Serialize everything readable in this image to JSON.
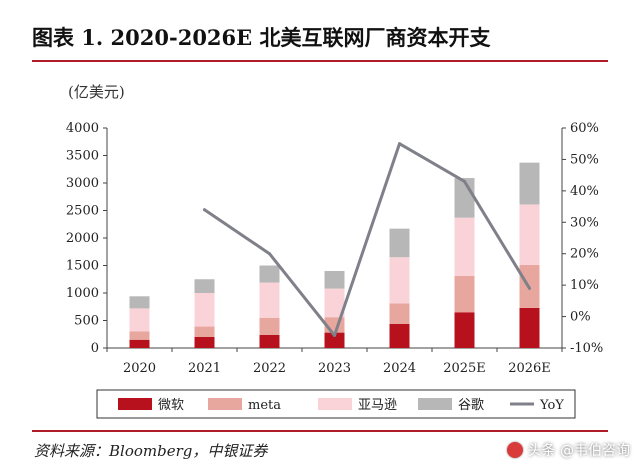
{
  "title": "图表 1. 2020-2026E 北美互联网厂商资本开支",
  "source": "资料来源：Bloomberg，中银证券",
  "watermark": "头条 @韦伯咨询",
  "chart_data": {
    "type": "bar",
    "stacked": true,
    "categories": [
      "2020",
      "2021",
      "2022",
      "2023",
      "2024",
      "2025E",
      "2026E"
    ],
    "ylabel": "(亿美元)",
    "ylim": [
      0,
      4000
    ],
    "y_ticks": [
      0,
      500,
      1000,
      1500,
      2000,
      2500,
      3000,
      3500,
      4000
    ],
    "y2lim": [
      -10,
      60
    ],
    "y2_ticks": [
      "-10%",
      "0%",
      "10%",
      "20%",
      "30%",
      "40%",
      "50%",
      "60%"
    ],
    "grid": false,
    "legend_position": "bottom",
    "series": [
      {
        "name": "微软",
        "color": "#b8111e",
        "values": [
          150,
          200,
          240,
          280,
          440,
          650,
          730
        ]
      },
      {
        "name": "meta",
        "color": "#e8a79e",
        "values": [
          150,
          190,
          310,
          280,
          370,
          660,
          780
        ]
      },
      {
        "name": "亚马逊",
        "color": "#f9d3d7",
        "values": [
          420,
          610,
          640,
          520,
          840,
          1060,
          1100
        ]
      },
      {
        "name": "谷歌",
        "color": "#b7b7b7",
        "values": [
          220,
          250,
          310,
          320,
          520,
          720,
          760
        ]
      }
    ],
    "line_series": {
      "name": "YoY",
      "color": "#7f8089",
      "axis": "right",
      "x": [
        "2021",
        "2022",
        "2023",
        "2024",
        "2025E",
        "2026E"
      ],
      "values": [
        34,
        20,
        -6,
        55,
        43,
        9
      ]
    }
  }
}
